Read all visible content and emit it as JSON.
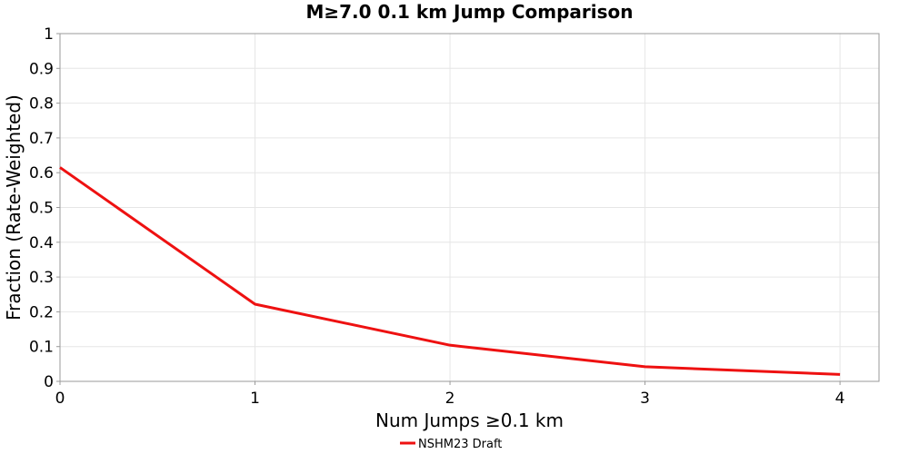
{
  "chart_data": {
    "type": "line",
    "title": "M≥7.0 0.1 km Jump Comparison",
    "xlabel": "Num Jumps ≥0.1 km",
    "ylabel": "Fraction (Rate-Weighted)",
    "xlim": [
      0,
      4.2
    ],
    "ylim": [
      0,
      1
    ],
    "xticks": [
      "0",
      "1",
      "2",
      "3",
      "4"
    ],
    "yticks": [
      "0",
      "0.1",
      "0.2",
      "0.3",
      "0.4",
      "0.5",
      "0.6",
      "0.7",
      "0.8",
      "0.9",
      "1"
    ],
    "grid": true,
    "legend_position": "bottom-center",
    "series": [
      {
        "name": "NSHM23 Draft",
        "color": "#ee1111",
        "x": [
          0,
          1,
          2,
          3,
          4
        ],
        "y": [
          0.615,
          0.222,
          0.104,
          0.042,
          0.02
        ]
      }
    ]
  }
}
